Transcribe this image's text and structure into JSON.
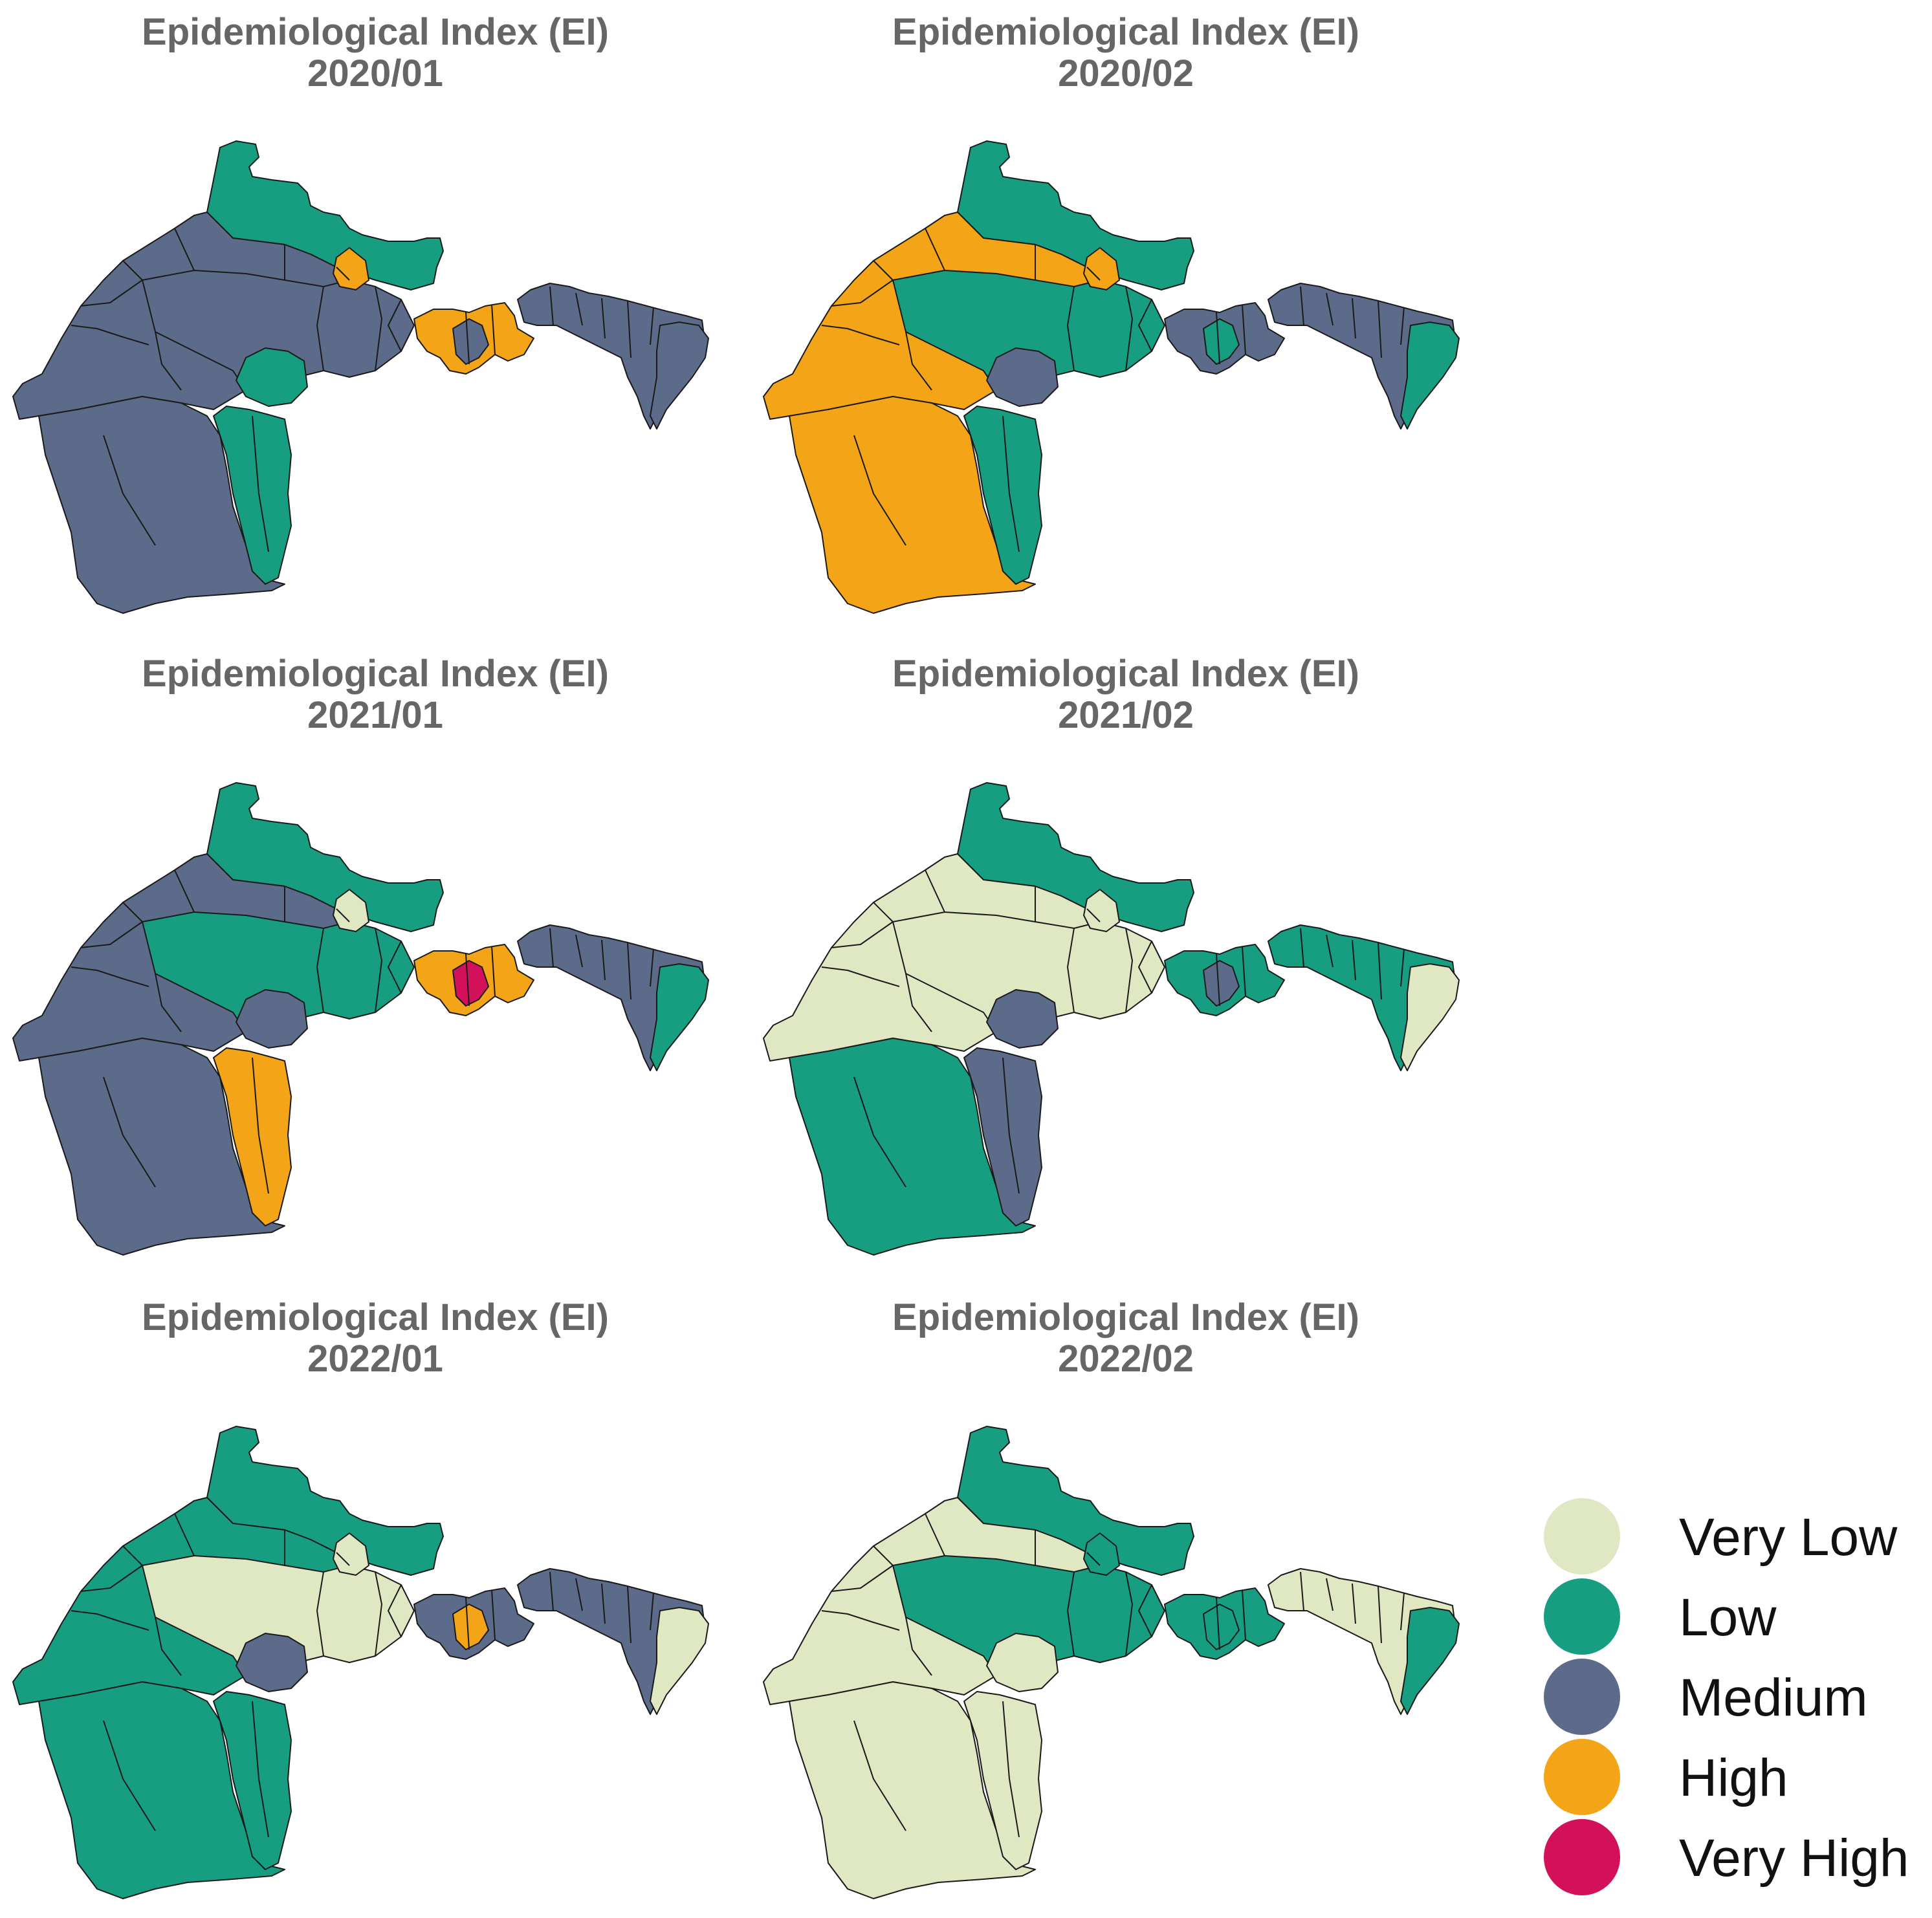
{
  "panels": [
    {
      "title": "Epidemiological Index (EI)",
      "period": "2020/01",
      "fills": {
        "northBase": "Low",
        "westBase": "Medium",
        "centerBase": "Medium",
        "south": "Medium",
        "southStrip": "Low",
        "centerPatch": "Low",
        "northPatch": "High",
        "urban": "High",
        "urbanCore": "Medium",
        "east": "Medium",
        "eastTip": "Medium"
      }
    },
    {
      "title": "Epidemiological Index (EI)",
      "period": "2020/02",
      "fills": {
        "northBase": "Low",
        "westBase": "High",
        "centerBase": "Low",
        "south": "High",
        "southStrip": "Low",
        "centerPatch": "Medium",
        "northPatch": "High",
        "urban": "Medium",
        "urbanCore": "Low",
        "east": "Medium",
        "eastTip": "Low"
      }
    },
    {
      "title": "Epidemiological Index (EI)",
      "period": "2021/01",
      "fills": {
        "northBase": "Low",
        "westBase": "Medium",
        "centerBase": "Low",
        "south": "Medium",
        "southStrip": "High",
        "centerPatch": "Medium",
        "northPatch": "Very Low",
        "urban": "High",
        "urbanCore": "Very High",
        "east": "Medium",
        "eastTip": "Low"
      }
    },
    {
      "title": "Epidemiological Index (EI)",
      "period": "2021/02",
      "fills": {
        "northBase": "Low",
        "westBase": "Very Low",
        "centerBase": "Very Low",
        "south": "Low",
        "southStrip": "Medium",
        "centerPatch": "Medium",
        "northPatch": "Very Low",
        "urban": "Low",
        "urbanCore": "Medium",
        "east": "Low",
        "eastTip": "Very Low"
      }
    },
    {
      "title": "Epidemiological Index (EI)",
      "period": "2022/01",
      "fills": {
        "northBase": "Low",
        "westBase": "Low",
        "centerBase": "Very Low",
        "south": "Low",
        "southStrip": "Low",
        "centerPatch": "Medium",
        "northPatch": "Very Low",
        "urban": "Medium",
        "urbanCore": "High",
        "east": "Medium",
        "eastTip": "Very Low"
      }
    },
    {
      "title": "Epidemiological Index (EI)",
      "period": "2022/02",
      "fills": {
        "northBase": "Low",
        "westBase": "Very Low",
        "centerBase": "Low",
        "south": "Very Low",
        "southStrip": "Very Low",
        "centerPatch": "Very Low",
        "northPatch": "Low",
        "urban": "Low",
        "urbanCore": "Low",
        "east": "Very Low",
        "eastTip": "Low"
      }
    }
  ],
  "legend": {
    "items": [
      {
        "label": "Very Low",
        "color": "#dfe8c3"
      },
      {
        "label": "Low",
        "color": "#179e81"
      },
      {
        "label": "Medium",
        "color": "#5b6b89"
      },
      {
        "label": "High",
        "color": "#f4a417"
      },
      {
        "label": "Very High",
        "color": "#d3115a"
      }
    ]
  }
}
